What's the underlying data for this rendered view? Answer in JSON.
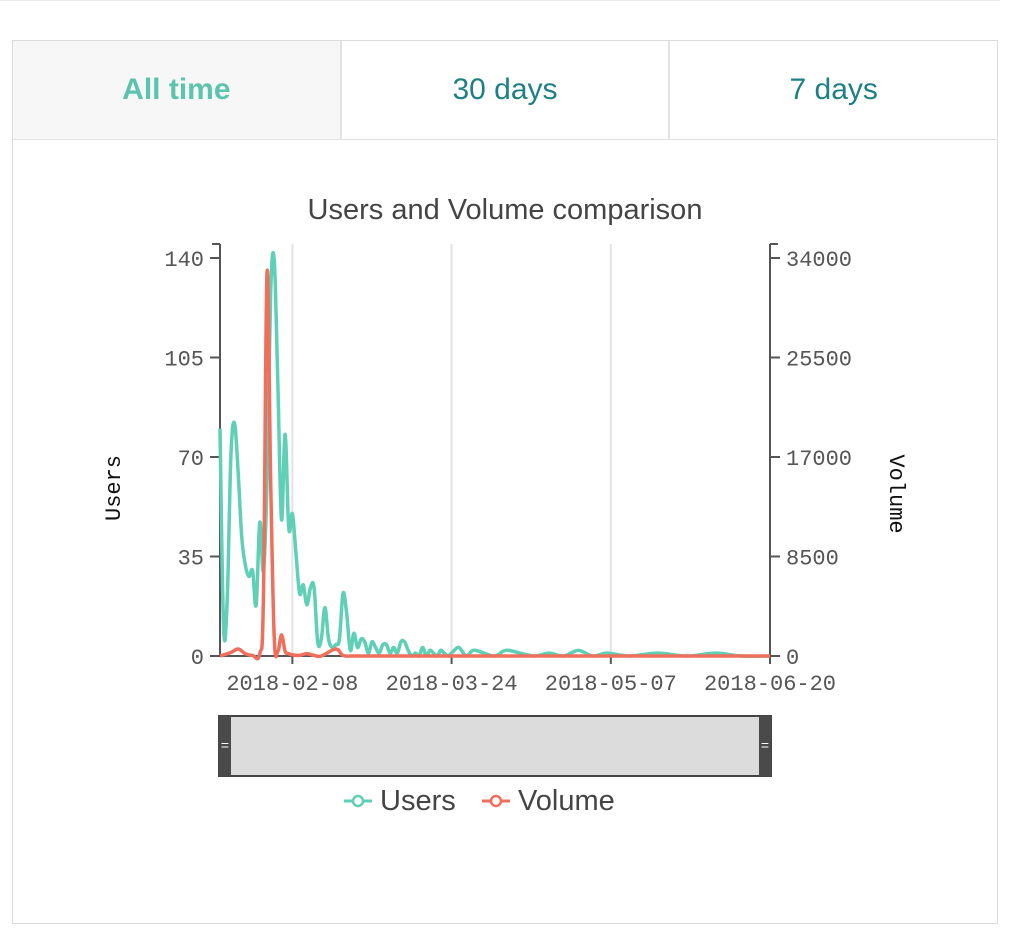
{
  "tabs": [
    {
      "label": "All time",
      "active": true
    },
    {
      "label": "30 days",
      "active": false
    },
    {
      "label": "7 days",
      "active": false
    }
  ],
  "colors": {
    "users": "#5fcfb5",
    "volume": "#f06e5c",
    "tab_text": "#1e7f86",
    "tab_active": "#5cc4ad"
  },
  "chart_data": {
    "type": "line",
    "title": "Users and Volume comparison",
    "ylabel": "Users",
    "y2label": "Volume",
    "ylim": [
      0,
      140
    ],
    "y2lim": [
      0,
      34000
    ],
    "yticks": [
      "0",
      "35",
      "70",
      "105",
      "140"
    ],
    "y2ticks": [
      "0",
      "8500",
      "17000",
      "25500",
      "34000"
    ],
    "xticks": [
      "2018-02-08",
      "2018-03-24",
      "2018-05-07",
      "2018-06-20"
    ],
    "xlim": [
      "2018-01-19",
      "2018-06-20"
    ],
    "grid": "vertical",
    "legend": "bottom",
    "series": [
      {
        "name": "Users",
        "axis": "left",
        "points": [
          [
            "2018-01-19",
            80
          ],
          [
            "2018-01-20",
            10
          ],
          [
            "2018-01-21",
            20
          ],
          [
            "2018-01-22",
            70
          ],
          [
            "2018-01-23",
            82
          ],
          [
            "2018-01-24",
            65
          ],
          [
            "2018-01-25",
            42
          ],
          [
            "2018-01-26",
            32
          ],
          [
            "2018-01-27",
            28
          ],
          [
            "2018-01-28",
            30
          ],
          [
            "2018-01-29",
            18
          ],
          [
            "2018-01-30",
            47
          ],
          [
            "2018-01-31",
            30
          ],
          [
            "2018-02-01",
            62
          ],
          [
            "2018-02-02",
            128
          ],
          [
            "2018-02-03",
            139
          ],
          [
            "2018-02-04",
            95
          ],
          [
            "2018-02-05",
            48
          ],
          [
            "2018-02-06",
            78
          ],
          [
            "2018-02-07",
            45
          ],
          [
            "2018-02-08",
            50
          ],
          [
            "2018-02-09",
            36
          ],
          [
            "2018-02-10",
            22
          ],
          [
            "2018-02-11",
            25
          ],
          [
            "2018-02-12",
            18
          ],
          [
            "2018-02-13",
            24
          ],
          [
            "2018-02-14",
            24
          ],
          [
            "2018-02-15",
            5
          ],
          [
            "2018-02-16",
            6
          ],
          [
            "2018-02-17",
            17
          ],
          [
            "2018-02-18",
            6
          ],
          [
            "2018-02-19",
            3
          ],
          [
            "2018-02-20",
            4
          ],
          [
            "2018-02-21",
            6
          ],
          [
            "2018-02-22",
            22
          ],
          [
            "2018-02-23",
            15
          ],
          [
            "2018-02-24",
            2
          ],
          [
            "2018-02-25",
            8
          ],
          [
            "2018-02-26",
            3
          ],
          [
            "2018-02-27",
            6
          ],
          [
            "2018-02-28",
            5
          ],
          [
            "2018-03-01",
            1
          ],
          [
            "2018-03-02",
            5
          ],
          [
            "2018-03-03",
            3
          ],
          [
            "2018-03-04",
            1
          ],
          [
            "2018-03-05",
            4
          ],
          [
            "2018-03-06",
            4
          ],
          [
            "2018-03-07",
            1
          ],
          [
            "2018-03-08",
            3
          ],
          [
            "2018-03-09",
            1
          ],
          [
            "2018-03-10",
            5
          ],
          [
            "2018-03-11",
            5
          ],
          [
            "2018-03-12",
            2
          ],
          [
            "2018-03-13",
            0
          ],
          [
            "2018-03-14",
            1
          ],
          [
            "2018-03-15",
            0
          ],
          [
            "2018-03-16",
            3
          ],
          [
            "2018-03-17",
            0
          ],
          [
            "2018-03-18",
            2
          ],
          [
            "2018-03-19",
            1
          ],
          [
            "2018-03-20",
            0
          ],
          [
            "2018-03-21",
            2
          ],
          [
            "2018-03-22",
            1
          ],
          [
            "2018-03-23",
            0
          ],
          [
            "2018-03-24",
            1
          ],
          [
            "2018-03-26",
            3
          ],
          [
            "2018-03-28",
            0
          ],
          [
            "2018-03-30",
            2
          ],
          [
            "2018-04-02",
            1
          ],
          [
            "2018-04-05",
            0
          ],
          [
            "2018-04-08",
            2
          ],
          [
            "2018-04-12",
            1
          ],
          [
            "2018-04-16",
            0
          ],
          [
            "2018-04-20",
            1
          ],
          [
            "2018-04-24",
            0
          ],
          [
            "2018-04-28",
            2
          ],
          [
            "2018-05-02",
            0
          ],
          [
            "2018-05-06",
            1
          ],
          [
            "2018-05-12",
            0
          ],
          [
            "2018-05-20",
            1
          ],
          [
            "2018-05-28",
            0
          ],
          [
            "2018-06-05",
            1
          ],
          [
            "2018-06-12",
            0
          ],
          [
            "2018-06-20",
            0
          ]
        ]
      },
      {
        "name": "Volume",
        "axis": "right",
        "points": [
          [
            "2018-01-19",
            0
          ],
          [
            "2018-01-22",
            300
          ],
          [
            "2018-01-24",
            600
          ],
          [
            "2018-01-26",
            200
          ],
          [
            "2018-01-28",
            50
          ],
          [
            "2018-01-30",
            200
          ],
          [
            "2018-01-31",
            5000
          ],
          [
            "2018-02-01",
            32800
          ],
          [
            "2018-02-02",
            15000
          ],
          [
            "2018-02-03",
            1500
          ],
          [
            "2018-02-04",
            400
          ],
          [
            "2018-02-05",
            1800
          ],
          [
            "2018-02-06",
            400
          ],
          [
            "2018-02-07",
            200
          ],
          [
            "2018-02-08",
            100
          ],
          [
            "2018-02-10",
            50
          ],
          [
            "2018-02-12",
            200
          ],
          [
            "2018-02-14",
            50
          ],
          [
            "2018-02-16",
            0
          ],
          [
            "2018-02-20",
            600
          ],
          [
            "2018-02-22",
            50
          ],
          [
            "2018-02-25",
            0
          ],
          [
            "2018-03-10",
            0
          ],
          [
            "2018-04-10",
            0
          ],
          [
            "2018-05-10",
            0
          ],
          [
            "2018-06-20",
            0
          ]
        ]
      }
    ]
  }
}
